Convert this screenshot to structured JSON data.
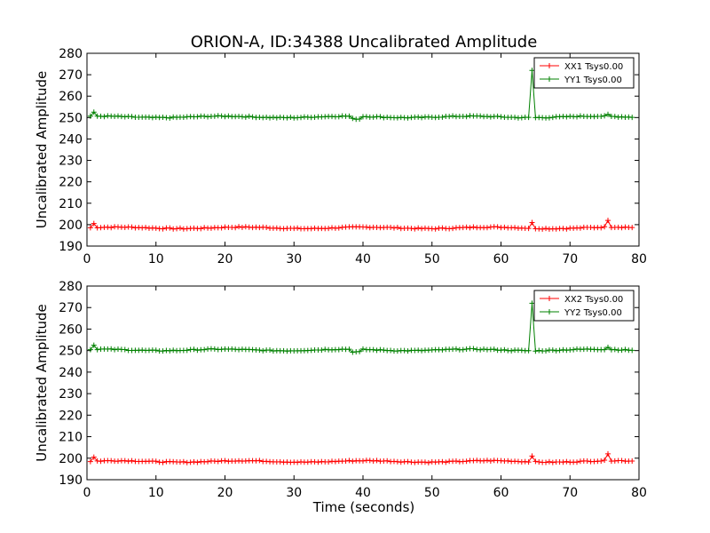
{
  "chart_data": {
    "type": "line",
    "title": "ORION-A, ID:34388 Uncalibrated Amplitude",
    "xlabel": "Time (seconds)",
    "xlim": [
      0,
      80
    ],
    "x_ticks": [
      "0",
      "10",
      "20",
      "30",
      "40",
      "50",
      "60",
      "70",
      "80"
    ],
    "grid": false,
    "colors": {
      "xx": "#ff0000",
      "yy": "#008000"
    },
    "subplots": [
      {
        "ylabel": "Uncalibrated Amplitude",
        "ylim": [
          190,
          280
        ],
        "y_ticks": [
          "190",
          "200",
          "210",
          "220",
          "230",
          "240",
          "250",
          "260",
          "270",
          "280"
        ],
        "legend_position": "top-right",
        "series": [
          {
            "name": "XX1 Tsys0.00",
            "color": "#ff0000",
            "baseline": 198.5,
            "spikes": [
              [
                1,
                200.5
              ],
              [
                64.5,
                201.0
              ],
              [
                75.5,
                202.0
              ]
            ],
            "x": [
              0.5,
              79
            ]
          },
          {
            "name": "YY1 Tsys0.00",
            "color": "#008000",
            "baseline": 250.3,
            "spikes": [
              [
                1,
                252.5
              ],
              [
                64.5,
                272.0
              ],
              [
                75.5,
                251.5
              ]
            ],
            "x": [
              0.5,
              79
            ]
          }
        ]
      },
      {
        "ylabel": "Uncalibrated Amplitude",
        "ylim": [
          190,
          280
        ],
        "y_ticks": [
          "190",
          "200",
          "210",
          "220",
          "230",
          "240",
          "250",
          "260",
          "270",
          "280"
        ],
        "legend_position": "top-right",
        "series": [
          {
            "name": "XX2 Tsys0.00",
            "color": "#ff0000",
            "baseline": 198.5,
            "spikes": [
              [
                1,
                200.5
              ],
              [
                64.5,
                201.0
              ],
              [
                75.5,
                202.0
              ]
            ],
            "x": [
              0.5,
              79
            ]
          },
          {
            "name": "YY2 Tsys0.00",
            "color": "#008000",
            "baseline": 250.3,
            "spikes": [
              [
                1,
                252.5
              ],
              [
                64.5,
                272.0
              ],
              [
                75.5,
                251.5
              ]
            ],
            "x": [
              0.5,
              79
            ]
          }
        ]
      }
    ]
  }
}
